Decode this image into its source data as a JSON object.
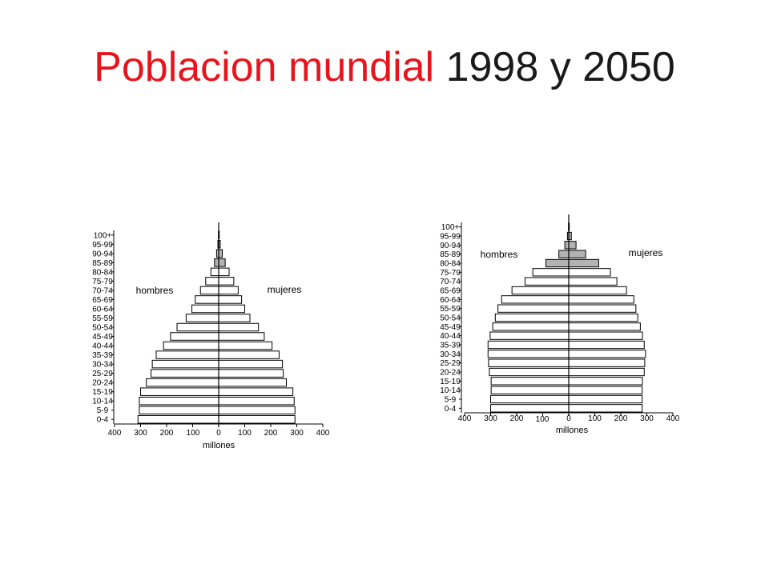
{
  "title": {
    "part_red": "Poblacion mundial",
    "part_black": "1998 y 2050",
    "red_color": "#e8141c"
  },
  "colors": {
    "bar_fill": "#ffffff",
    "bar_fill_old": "#b3b3b3",
    "bar_stroke": "#000000"
  },
  "chart_data": [
    {
      "type": "bar",
      "subtype": "population-pyramid",
      "categories": [
        "0-4",
        "5-9",
        "10-14",
        "15-19",
        "20-24",
        "25-29",
        "30-34",
        "35-39",
        "40-44",
        "45-49",
        "50-54",
        "55-59",
        "60-64",
        "65-69",
        "70-74",
        "75-79",
        "80-84",
        "85-89",
        "90-94",
        "95-99",
        "100+"
      ],
      "series": [
        {
          "name": "hombres",
          "values": [
            310,
            305,
            305,
            300,
            278,
            260,
            255,
            240,
            212,
            185,
            160,
            125,
            103,
            90,
            70,
            50,
            30,
            16,
            8,
            3,
            1
          ]
        },
        {
          "name": "mujeres",
          "values": [
            293,
            293,
            290,
            285,
            260,
            248,
            245,
            232,
            205,
            175,
            153,
            120,
            100,
            88,
            75,
            58,
            40,
            25,
            14,
            6,
            2
          ]
        }
      ],
      "highlight_from_category": "85-89",
      "xlabel": "millones",
      "x_tick_labels": [
        "400",
        "300",
        "200",
        "100",
        "0",
        "100",
        "200",
        "300",
        "400"
      ],
      "xlim": [
        -400,
        400
      ],
      "extra_label": "100",
      "grid": false
    },
    {
      "type": "bar",
      "subtype": "population-pyramid",
      "categories": [
        "0-4",
        "5-9",
        "10-14",
        "15-19",
        "20-24",
        "25-29",
        "30-34",
        "35-39",
        "40-44",
        "45-49",
        "50-54",
        "55-59",
        "60-64",
        "65-69",
        "70-74",
        "75-79",
        "80-84",
        "85-89",
        "90-94",
        "95-99",
        "100+"
      ],
      "series": [
        {
          "name": "hombres",
          "values": [
            300,
            300,
            298,
            298,
            305,
            308,
            310,
            310,
            302,
            292,
            282,
            272,
            258,
            218,
            168,
            138,
            88,
            38,
            15,
            5,
            1
          ]
        },
        {
          "name": "mujeres",
          "values": [
            282,
            282,
            282,
            283,
            290,
            292,
            295,
            290,
            283,
            275,
            265,
            258,
            250,
            222,
            185,
            160,
            115,
            65,
            28,
            10,
            2
          ]
        }
      ],
      "highlight_from_category": "80-84",
      "xlabel": "millones",
      "x_tick_labels": [
        "400",
        "300",
        "200",
        "100",
        "0",
        "100",
        "200",
        "300",
        "400"
      ],
      "xlim": [
        -400,
        400
      ],
      "extra_label": "100",
      "grid": false
    }
  ]
}
